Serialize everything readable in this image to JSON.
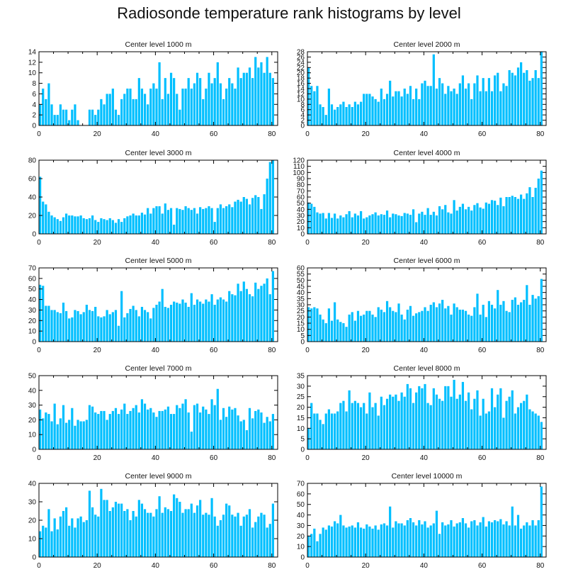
{
  "title": "Radiosonde temperature rank histograms by level",
  "bar_color": "#00bfff",
  "chart_data": [
    {
      "type": "bar",
      "title": "Center level 1000 m",
      "x_ticks": [
        0,
        20,
        40,
        60,
        80
      ],
      "xlim": [
        0,
        82
      ],
      "ylim": [
        0,
        14
      ],
      "y_ticks": [
        0,
        2,
        4,
        6,
        8,
        10,
        12,
        14
      ],
      "y_axis_side": "left",
      "values": [
        4,
        7,
        5,
        8,
        4,
        2,
        2,
        4,
        3,
        3,
        1,
        3,
        4,
        1,
        0,
        0,
        0,
        3,
        3,
        2,
        3,
        5,
        4,
        6,
        6,
        7,
        3,
        2,
        5,
        6,
        7,
        7,
        5,
        5,
        9,
        7,
        6,
        4,
        7,
        8,
        7,
        12,
        5,
        9,
        6,
        10,
        9,
        6,
        3,
        7,
        7,
        9,
        7,
        8,
        10,
        9,
        5,
        7,
        10,
        8,
        9,
        12,
        8,
        5,
        7,
        9,
        8,
        7,
        11,
        9,
        10,
        10,
        11,
        9,
        13,
        11,
        12,
        10,
        13,
        10,
        9
      ],
      "xlabel": "",
      "ylabel": ""
    },
    {
      "type": "bar",
      "title": "Center level 2000 m",
      "x_ticks": [
        0,
        20,
        40,
        60,
        80
      ],
      "xlim": [
        0,
        82
      ],
      "ylim": [
        0,
        28
      ],
      "y_ticks": [
        0,
        2,
        4,
        6,
        8,
        10,
        12,
        14,
        16,
        18,
        20,
        22,
        24,
        26,
        28
      ],
      "y_axis_side": "left",
      "values": [
        22,
        15,
        13,
        15,
        8,
        7,
        4,
        14,
        8,
        6,
        7,
        8,
        9,
        7,
        8,
        7,
        9,
        8,
        9,
        12,
        12,
        12,
        11,
        10,
        9,
        14,
        10,
        12,
        17,
        11,
        13,
        13,
        11,
        14,
        12,
        15,
        10,
        14,
        10,
        16,
        17,
        15,
        15,
        27,
        14,
        18,
        16,
        12,
        15,
        13,
        14,
        12,
        16,
        19,
        14,
        16,
        10,
        16,
        19,
        13,
        18,
        13,
        18,
        13,
        19,
        20,
        13,
        16,
        15,
        21,
        20,
        19,
        22,
        24,
        20,
        21,
        17,
        18,
        21,
        18,
        28
      ],
      "xlabel": "",
      "ylabel": ""
    },
    {
      "type": "bar",
      "title": "Center level 3000 m",
      "x_ticks": [
        0,
        20,
        40,
        60,
        80
      ],
      "xlim": [
        0,
        82
      ],
      "ylim": [
        0,
        80
      ],
      "y_ticks": [
        0,
        20,
        40,
        60,
        80
      ],
      "y_axis_side": "left",
      "values": [
        62,
        35,
        32,
        24,
        20,
        18,
        16,
        14,
        18,
        22,
        20,
        20,
        19,
        19,
        20,
        17,
        16,
        17,
        20,
        15,
        13,
        17,
        16,
        15,
        17,
        15,
        12,
        16,
        13,
        17,
        19,
        20,
        22,
        20,
        20,
        23,
        21,
        28,
        22,
        28,
        30,
        30,
        22,
        33,
        26,
        28,
        10,
        28,
        27,
        26,
        30,
        28,
        26,
        28,
        22,
        29,
        27,
        28,
        30,
        28,
        13,
        28,
        32,
        28,
        30,
        32,
        29,
        35,
        37,
        35,
        40,
        38,
        32,
        39,
        42,
        40,
        27,
        43,
        60,
        78,
        80
      ],
      "xlabel": "",
      "ylabel": ""
    },
    {
      "type": "bar",
      "title": "Center level 4000 m",
      "x_ticks": [
        0,
        20,
        40,
        60,
        80
      ],
      "xlim": [
        0,
        82
      ],
      "ylim": [
        0,
        120
      ],
      "y_ticks": [
        0,
        10,
        20,
        30,
        40,
        50,
        60,
        70,
        80,
        90,
        100,
        110,
        120
      ],
      "y_axis_side": "left",
      "values": [
        51,
        49,
        44,
        35,
        33,
        34,
        25,
        34,
        26,
        33,
        25,
        30,
        27,
        32,
        37,
        27,
        33,
        30,
        37,
        25,
        27,
        30,
        32,
        35,
        30,
        32,
        31,
        38,
        27,
        33,
        32,
        30,
        29,
        34,
        33,
        31,
        40,
        19,
        33,
        36,
        31,
        42,
        31,
        36,
        30,
        45,
        40,
        47,
        35,
        33,
        55,
        38,
        44,
        49,
        40,
        44,
        38,
        47,
        50,
        43,
        41,
        51,
        49,
        55,
        54,
        47,
        59,
        45,
        60,
        60,
        62,
        60,
        57,
        64,
        57,
        66,
        76,
        60,
        75,
        90,
        103
      ],
      "xlabel": "",
      "ylabel": ""
    },
    {
      "type": "bar",
      "title": "Center level 5000 m",
      "x_ticks": [
        0,
        20,
        40,
        60,
        80
      ],
      "xlim": [
        0,
        82
      ],
      "ylim": [
        0,
        70
      ],
      "y_ticks": [
        0,
        10,
        20,
        30,
        40,
        50,
        60,
        70
      ],
      "y_axis_side": "left",
      "values": [
        54,
        53,
        34,
        34,
        30,
        30,
        28,
        27,
        37,
        29,
        22,
        23,
        30,
        29,
        26,
        28,
        35,
        30,
        29,
        33,
        24,
        23,
        24,
        30,
        26,
        28,
        30,
        15,
        48,
        23,
        27,
        31,
        34,
        30,
        24,
        33,
        30,
        28,
        22,
        32,
        35,
        38,
        50,
        33,
        32,
        35,
        38,
        37,
        36,
        40,
        37,
        33,
        46,
        35,
        40,
        38,
        36,
        40,
        38,
        45,
        35,
        40,
        42,
        40,
        38,
        48,
        45,
        44,
        55,
        48,
        57,
        50,
        45,
        43,
        56,
        50,
        53,
        55,
        60,
        45,
        67
      ],
      "xlabel": "",
      "ylabel": ""
    },
    {
      "type": "bar",
      "title": "Center level 6000 m",
      "x_ticks": [
        0,
        20,
        40,
        60,
        80
      ],
      "xlim": [
        0,
        82
      ],
      "ylim": [
        0,
        60
      ],
      "y_ticks": [
        0,
        5,
        10,
        15,
        20,
        25,
        30,
        35,
        40,
        45,
        50,
        55,
        60
      ],
      "y_axis_side": "left",
      "values": [
        28,
        27,
        28,
        27,
        22,
        18,
        15,
        27,
        17,
        32,
        18,
        16,
        15,
        12,
        22,
        24,
        17,
        25,
        21,
        22,
        25,
        25,
        22,
        20,
        28,
        26,
        24,
        33,
        28,
        25,
        24,
        31,
        22,
        18,
        26,
        29,
        21,
        23,
        24,
        25,
        28,
        25,
        30,
        32,
        28,
        31,
        34,
        27,
        29,
        22,
        31,
        28,
        26,
        26,
        25,
        22,
        21,
        28,
        39,
        22,
        30,
        20,
        33,
        30,
        27,
        42,
        30,
        33,
        25,
        24,
        34,
        36,
        30,
        32,
        34,
        46,
        30,
        38,
        35,
        37,
        51
      ],
      "xlabel": "",
      "ylabel": ""
    },
    {
      "type": "bar",
      "title": "Center level 7000 m",
      "x_ticks": [
        0,
        20,
        40,
        60,
        80
      ],
      "xlim": [
        0,
        82
      ],
      "ylim": [
        0,
        50
      ],
      "y_ticks": [
        0,
        10,
        20,
        30,
        40,
        50
      ],
      "y_axis_side": "left",
      "values": [
        27,
        21,
        25,
        24,
        19,
        31,
        17,
        21,
        30,
        18,
        20,
        28,
        16,
        20,
        19,
        19,
        20,
        30,
        29,
        25,
        24,
        26,
        26,
        20,
        24,
        26,
        28,
        24,
        27,
        31,
        24,
        26,
        28,
        30,
        25,
        34,
        31,
        27,
        28,
        25,
        22,
        26,
        26,
        27,
        29,
        24,
        24,
        30,
        28,
        31,
        34,
        25,
        12,
        30,
        31,
        25,
        29,
        27,
        24,
        34,
        30,
        41,
        20,
        28,
        22,
        29,
        27,
        28,
        23,
        19,
        20,
        13,
        28,
        21,
        26,
        27,
        25,
        18,
        22,
        19,
        24
      ],
      "xlabel": "",
      "ylabel": ""
    },
    {
      "type": "bar",
      "title": "Center level 8000 m",
      "x_ticks": [
        0,
        20,
        40,
        60,
        80
      ],
      "xlim": [
        0,
        82
      ],
      "ylim": [
        0,
        35
      ],
      "y_ticks": [
        0,
        5,
        10,
        15,
        20,
        25,
        30,
        35
      ],
      "y_axis_side": "left",
      "values": [
        10,
        22,
        17,
        17,
        14,
        12,
        17,
        19,
        17,
        17,
        18,
        22,
        23,
        18,
        28,
        22,
        23,
        22,
        20,
        22,
        17,
        27,
        20,
        22,
        16,
        25,
        21,
        24,
        26,
        25,
        26,
        23,
        27,
        25,
        31,
        29,
        22,
        27,
        30,
        29,
        31,
        22,
        21,
        29,
        26,
        24,
        23,
        30,
        30,
        25,
        33,
        24,
        26,
        32,
        23,
        27,
        19,
        24,
        28,
        16,
        24,
        17,
        18,
        29,
        20,
        26,
        29,
        15,
        23,
        25,
        28,
        17,
        20,
        22,
        23,
        26,
        19,
        18,
        17,
        16,
        13
      ],
      "xlabel": "",
      "ylabel": ""
    },
    {
      "type": "bar",
      "title": "Center level 9000 m",
      "x_ticks": [
        0,
        20,
        40,
        60,
        80
      ],
      "xlim": [
        0,
        82
      ],
      "ylim": [
        0,
        40
      ],
      "y_ticks": [
        0,
        10,
        20,
        30,
        40
      ],
      "y_axis_side": "left",
      "values": [
        14,
        17,
        16,
        26,
        14,
        21,
        15,
        22,
        25,
        27,
        17,
        21,
        16,
        21,
        22,
        19,
        20,
        36,
        27,
        23,
        22,
        37,
        31,
        31,
        25,
        27,
        30,
        29,
        29,
        25,
        26,
        20,
        25,
        22,
        31,
        29,
        26,
        24,
        24,
        22,
        26,
        33,
        24,
        27,
        26,
        25,
        34,
        32,
        30,
        24,
        26,
        26,
        29,
        24,
        28,
        31,
        23,
        24,
        23,
        32,
        22,
        17,
        20,
        23,
        29,
        28,
        23,
        22,
        24,
        17,
        22,
        23,
        26,
        16,
        19,
        22,
        24,
        23,
        16,
        18,
        29
      ],
      "xlabel": "",
      "ylabel": ""
    },
    {
      "type": "bar",
      "title": "Center level 10000 m",
      "x_ticks": [
        0,
        20,
        40,
        60,
        80
      ],
      "xlim": [
        0,
        82
      ],
      "ylim": [
        0,
        70
      ],
      "y_ticks": [
        0,
        10,
        20,
        30,
        40,
        50,
        60,
        70
      ],
      "y_axis_side": "left",
      "values": [
        20,
        22,
        27,
        15,
        22,
        28,
        26,
        30,
        29,
        34,
        32,
        40,
        30,
        28,
        29,
        30,
        28,
        33,
        28,
        27,
        31,
        29,
        27,
        30,
        26,
        31,
        32,
        30,
        48,
        28,
        34,
        32,
        32,
        30,
        35,
        37,
        33,
        30,
        35,
        31,
        34,
        28,
        30,
        32,
        44,
        22,
        33,
        30,
        31,
        35,
        29,
        32,
        33,
        37,
        32,
        28,
        34,
        35,
        30,
        33,
        38,
        29,
        34,
        33,
        35,
        34,
        36,
        31,
        34,
        30,
        48,
        30,
        40,
        27,
        30,
        33,
        30,
        35,
        30,
        35,
        67
      ],
      "xlabel": "",
      "ylabel": ""
    }
  ]
}
